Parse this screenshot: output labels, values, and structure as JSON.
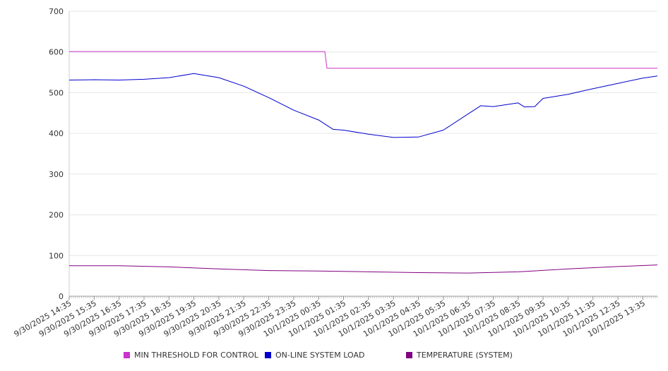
{
  "chart_data": {
    "type": "line",
    "ylim": [
      0,
      700
    ],
    "yticks": [
      0,
      100,
      200,
      300,
      400,
      500,
      600,
      700
    ],
    "grid": true,
    "legend_position": "bottom",
    "x_start": "9/30/2025 14:35",
    "x_end": "10/1/2025 14:10",
    "x_tick_labels": [
      "9/30/2025 14:35",
      "9/30/2025 15:35",
      "9/30/2025 16:35",
      "9/30/2025 17:35",
      "9/30/2025 18:35",
      "9/30/2025 19:35",
      "9/30/2025 20:35",
      "9/30/2025 21:35",
      "9/30/2025 22:35",
      "9/30/2025 23:35",
      "10/1/2025 00:35",
      "10/1/2025 01:35",
      "10/1/2025 02:35",
      "10/1/2025 03:35",
      "10/1/2025 04:35",
      "10/1/2025 05:35",
      "10/1/2025 06:35",
      "10/1/2025 07:35",
      "10/1/2025 08:35",
      "10/1/2025 09:35",
      "10/1/2025 10:35",
      "10/1/2025 11:35",
      "10/1/2025 12:35",
      "10/1/2025 13:35"
    ],
    "series": [
      {
        "name": "MIN THRESHOLD FOR CONTROL",
        "color": "#cc33cc",
        "points": [
          [
            "9/30/2025 14:35",
            601
          ],
          [
            "10/1/2025 00:50",
            601
          ],
          [
            "10/1/2025 00:55",
            560
          ],
          [
            "10/1/2025 14:10",
            560
          ]
        ]
      },
      {
        "name": "ON-LINE SYSTEM LOAD",
        "color": "#0000cc",
        "points": [
          [
            "9/30/2025 14:35",
            531
          ],
          [
            "9/30/2025 15:35",
            532
          ],
          [
            "9/30/2025 16:35",
            531
          ],
          [
            "9/30/2025 17:35",
            533
          ],
          [
            "9/30/2025 18:35",
            537
          ],
          [
            "9/30/2025 19:35",
            547
          ],
          [
            "9/30/2025 20:35",
            537
          ],
          [
            "9/30/2025 21:35",
            516
          ],
          [
            "9/30/2025 22:35",
            488
          ],
          [
            "9/30/2025 23:35",
            457
          ],
          [
            "10/1/2025 00:35",
            433
          ],
          [
            "10/1/2025 01:10",
            410
          ],
          [
            "10/1/2025 01:35",
            408
          ],
          [
            "10/1/2025 02:35",
            398
          ],
          [
            "10/1/2025 03:35",
            390
          ],
          [
            "10/1/2025 04:35",
            391
          ],
          [
            "10/1/2025 05:35",
            408
          ],
          [
            "10/1/2025 06:35",
            448
          ],
          [
            "10/1/2025 07:05",
            468
          ],
          [
            "10/1/2025 07:35",
            466
          ],
          [
            "10/1/2025 08:35",
            475
          ],
          [
            "10/1/2025 08:50",
            465
          ],
          [
            "10/1/2025 09:15",
            466
          ],
          [
            "10/1/2025 09:35",
            486
          ],
          [
            "10/1/2025 10:35",
            496
          ],
          [
            "10/1/2025 11:35",
            510
          ],
          [
            "10/1/2025 12:35",
            523
          ],
          [
            "10/1/2025 13:35",
            536
          ],
          [
            "10/1/2025 14:10",
            541
          ]
        ]
      },
      {
        "name": "TEMPERATURE (SYSTEM)",
        "color": "#800080",
        "points": [
          [
            "9/30/2025 14:35",
            75
          ],
          [
            "9/30/2025 16:35",
            75
          ],
          [
            "9/30/2025 18:35",
            72
          ],
          [
            "9/30/2025 20:35",
            67
          ],
          [
            "9/30/2025 22:35",
            63
          ],
          [
            "10/1/2025 00:35",
            62
          ],
          [
            "10/1/2025 02:35",
            60
          ],
          [
            "10/1/2025 04:35",
            58
          ],
          [
            "10/1/2025 06:35",
            57
          ],
          [
            "10/1/2025 08:35",
            60
          ],
          [
            "10/1/2025 10:35",
            67
          ],
          [
            "10/1/2025 12:35",
            73
          ],
          [
            "10/1/2025 14:10",
            77
          ]
        ]
      }
    ]
  }
}
